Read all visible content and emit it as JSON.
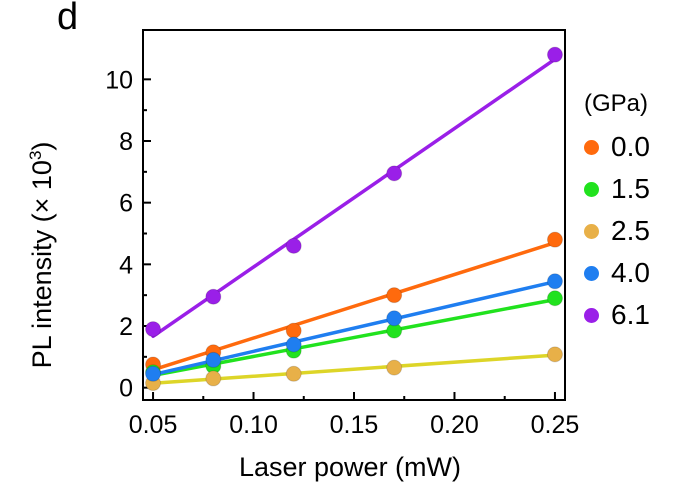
{
  "panel_letter": "d",
  "chart_data": {
    "type": "scatter",
    "xlabel": "Laser power (mW)",
    "ylabel_prefix": "PL intensity (× 10",
    "ylabel_sup": "3",
    "ylabel_suffix": ")",
    "xlim": [
      0.045,
      0.255
    ],
    "ylim": [
      -0.4,
      11.6
    ],
    "xticks": [
      0.05,
      0.1,
      0.15,
      0.2,
      0.25
    ],
    "xtick_labels": [
      "0.05",
      "0.10",
      "0.15",
      "0.20",
      "0.25"
    ],
    "yticks": [
      0,
      2,
      4,
      6,
      8,
      10
    ],
    "ytick_labels": [
      "0",
      "2",
      "4",
      "6",
      "8",
      "10"
    ],
    "fit_lines": true,
    "grid": false,
    "legend_position": "right",
    "legend_title": "(GPa)",
    "x": [
      0.05,
      0.08,
      0.12,
      0.17,
      0.25
    ],
    "series": [
      {
        "name": "0.0",
        "color": "#ff6a0d",
        "values": [
          0.75,
          1.15,
          1.85,
          3.0,
          4.8
        ]
      },
      {
        "name": "1.5",
        "color": "#21e21e",
        "values": [
          0.5,
          0.7,
          1.2,
          1.85,
          2.9
        ]
      },
      {
        "name": "2.5",
        "color": "#e8b048",
        "line_color": "#ddd528",
        "values": [
          0.15,
          0.3,
          0.45,
          0.65,
          1.08
        ]
      },
      {
        "name": "4.0",
        "color": "#1f7ef0",
        "values": [
          0.45,
          0.9,
          1.4,
          2.25,
          3.45
        ]
      },
      {
        "name": "6.1",
        "color": "#9a1fe8",
        "values": [
          1.9,
          2.95,
          4.6,
          6.95,
          10.8
        ]
      }
    ]
  }
}
